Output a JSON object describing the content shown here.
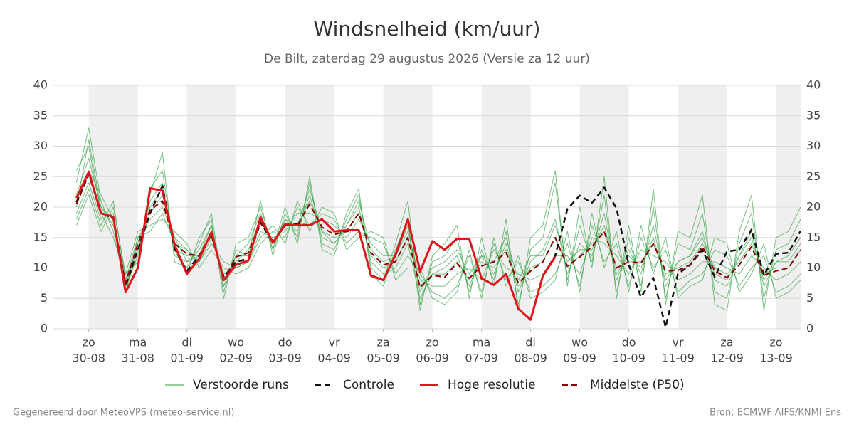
{
  "chart_data": {
    "type": "line",
    "title": "Windsnelheid (km/uur)",
    "subtitle": "De Bilt, zaterdag 29 augustus 2026 (Versie za 12 uur)",
    "footer_left": "Gegenereerd door MeteoVPS (meteo-service.nl)",
    "footer_right": "Bron: ECMWF AIFS/KNMI Ens",
    "xlim": [
      -0.72,
      14.5
    ],
    "ylim": [
      0,
      40
    ],
    "yticks": [
      0,
      5,
      10,
      15,
      20,
      25,
      30,
      35,
      40
    ],
    "grid": true,
    "xticks": [
      {
        "value": 0,
        "label": [
          "zo",
          "30-08"
        ]
      },
      {
        "value": 1,
        "label": [
          "ma",
          "31-08"
        ]
      },
      {
        "value": 2,
        "label": [
          "di",
          "01-09"
        ]
      },
      {
        "value": 3,
        "label": [
          "wo",
          "02-09"
        ]
      },
      {
        "value": 4,
        "label": [
          "do",
          "03-09"
        ]
      },
      {
        "value": 5,
        "label": [
          "vr",
          "04-09"
        ]
      },
      {
        "value": 6,
        "label": [
          "za",
          "05-09"
        ]
      },
      {
        "value": 7,
        "label": [
          "zo",
          "06-09"
        ]
      },
      {
        "value": 8,
        "label": [
          "ma",
          "07-09"
        ]
      },
      {
        "value": 9,
        "label": [
          "di",
          "08-09"
        ]
      },
      {
        "value": 10,
        "label": [
          "wo",
          "09-09"
        ]
      },
      {
        "value": 11,
        "label": [
          "do",
          "10-09"
        ]
      },
      {
        "value": 12,
        "label": [
          "vr",
          "11-09"
        ]
      },
      {
        "value": 13,
        "label": [
          "za",
          "12-09"
        ]
      },
      {
        "value": 14,
        "label": [
          "zo",
          "13-09"
        ]
      }
    ],
    "x": [
      -0.25,
      0,
      0.25,
      0.5,
      0.75,
      1,
      1.25,
      1.5,
      1.75,
      2,
      2.25,
      2.5,
      2.75,
      3,
      3.25,
      3.5,
      3.75,
      4,
      4.25,
      4.5,
      4.75,
      5,
      5.25,
      5.5,
      5.75,
      6,
      6.25,
      6.5,
      6.75,
      7,
      7.25,
      7.5,
      7.75,
      8,
      8.25,
      8.5,
      8.75,
      9,
      9.25,
      9.5,
      9.75,
      10,
      10.25,
      10.5,
      10.75,
      11,
      11.25,
      11.5,
      11.75,
      12,
      12.25,
      12.5,
      12.75,
      13,
      13.25,
      13.5,
      13.75,
      14,
      14.25,
      14.5
    ],
    "ensemble": {
      "name": "Verstoorde runs",
      "color": "#2e9e3e",
      "members": [
        [
          22,
          28,
          20,
          17,
          8,
          13,
          21,
          24,
          12,
          11,
          13,
          17,
          7,
          12,
          14,
          19,
          13,
          18,
          16,
          22,
          15,
          14,
          17,
          20,
          11,
          9,
          10,
          14,
          5,
          9,
          10,
          12,
          7,
          12,
          9,
          14,
          6,
          11,
          13,
          18,
          9,
          14,
          12,
          19,
          8,
          13,
          9,
          17,
          7,
          11,
          12,
          16,
          8,
          7,
          12,
          16,
          7,
          11,
          12,
          15
        ],
        [
          19,
          24,
          18,
          19,
          6,
          15,
          18,
          20,
          15,
          13,
          11,
          15,
          9,
          10,
          11,
          16,
          15,
          16,
          19,
          19,
          18,
          17,
          15,
          18,
          14,
          12,
          12,
          16,
          8,
          7,
          7,
          9,
          10,
          8,
          13,
          10,
          9,
          8,
          9,
          12,
          12,
          9,
          15,
          14,
          12,
          9,
          13,
          12,
          11,
          8,
          9,
          11,
          11,
          10,
          9,
          12,
          10,
          8,
          9,
          11
        ],
        [
          24,
          33,
          21,
          16,
          7,
          12,
          22,
          29,
          11,
          10,
          14,
          19,
          6,
          13,
          12,
          21,
          12,
          19,
          15,
          24,
          14,
          13,
          18,
          22,
          10,
          8,
          14,
          21,
          4,
          11,
          12,
          15,
          6,
          13,
          8,
          16,
          4,
          13,
          15,
          24,
          8,
          17,
          11,
          22,
          6,
          15,
          7,
          20,
          5,
          14,
          13,
          19,
          6,
          5,
          14,
          19,
          5,
          13,
          14,
          18
        ],
        [
          17,
          22,
          16,
          20,
          9,
          16,
          17,
          18,
          16,
          14,
          10,
          13,
          10,
          9,
          10,
          14,
          16,
          15,
          20,
          17,
          19,
          18,
          14,
          16,
          15,
          14,
          9,
          12,
          9,
          6,
          5,
          7,
          12,
          6,
          14,
          8,
          11,
          6,
          7,
          9,
          14,
          7,
          17,
          11,
          14,
          7,
          15,
          10,
          13,
          6,
          8,
          9,
          13,
          12,
          7,
          10,
          12,
          6,
          7,
          9
        ],
        [
          21,
          26,
          22,
          18,
          7,
          14,
          20,
          23,
          13,
          12,
          12,
          16,
          8,
          11,
          13,
          18,
          14,
          17,
          17,
          21,
          16,
          15,
          16,
          19,
          12,
          10,
          11,
          15,
          7,
          9,
          9,
          11,
          8,
          11,
          10,
          13,
          7,
          10,
          11,
          15,
          10,
          12,
          14,
          16,
          10,
          11,
          11,
          14,
          9,
          10,
          11,
          14,
          10,
          9,
          11,
          14,
          9,
          10,
          10,
          13
        ],
        [
          26,
          30,
          19,
          15,
          9,
          11,
          23,
          26,
          13,
          9,
          15,
          18,
          5,
          14,
          15,
          20,
          13,
          20,
          14,
          25,
          13,
          12,
          19,
          23,
          9,
          7,
          13,
          18,
          3,
          12,
          14,
          17,
          5,
          15,
          7,
          18,
          3,
          15,
          17,
          26,
          7,
          20,
          10,
          25,
          5,
          17,
          6,
          23,
          4,
          16,
          15,
          22,
          4,
          3,
          16,
          22,
          3,
          15,
          16,
          20
        ],
        [
          18,
          23,
          17,
          21,
          8,
          15,
          16,
          19,
          14,
          13,
          11,
          14,
          11,
          10,
          11,
          15,
          17,
          14,
          21,
          16,
          20,
          19,
          13,
          15,
          16,
          15,
          8,
          10,
          10,
          5,
          4,
          6,
          13,
          5,
          15,
          7,
          12,
          5,
          6,
          8,
          16,
          6,
          19,
          10,
          16,
          6,
          17,
          9,
          15,
          5,
          7,
          8,
          15,
          14,
          6,
          9,
          14,
          5,
          6,
          8
        ],
        [
          20,
          31,
          20,
          18,
          6,
          13,
          19,
          22,
          15,
          11,
          12,
          17,
          7,
          12,
          12,
          18,
          14,
          18,
          17,
          23,
          16,
          14,
          17,
          21,
          13,
          11,
          12,
          17,
          6,
          10,
          11,
          13,
          9,
          12,
          11,
          15,
          8,
          12,
          12,
          17,
          11,
          13,
          13,
          17,
          9,
          12,
          10,
          15,
          8,
          11,
          12,
          15,
          9,
          8,
          12,
          15,
          8,
          11,
          11,
          14
        ]
      ]
    },
    "series": [
      {
        "name": "Controle",
        "color": "#111111",
        "dash": true,
        "values": [
          20.8,
          25.5,
          19,
          18.3,
          7,
          13,
          19,
          23.5,
          13.2,
          9.5,
          12,
          15.5,
          8.5,
          11,
          11.5,
          17.5,
          14.2,
          17,
          17.2,
          17,
          18,
          16,
          16,
          16.3,
          8.8,
          8,
          12,
          18,
          9.5,
          14.4,
          13,
          14.8,
          14.8,
          8.3,
          7.2,
          9,
          3.3,
          1.5,
          8.7,
          12,
          19.7,
          21.9,
          20.7,
          23.2,
          19.8,
          10.5,
          5.2,
          8.4,
          0.3,
          9,
          10.5,
          13,
          8.5,
          12.7,
          13,
          16.3,
          8.8,
          12.3,
          12.5,
          16.1
        ]
      },
      {
        "name": "Hoge resolutie",
        "color": "#e0151b",
        "dash": false,
        "values": [
          21.5,
          25.8,
          19,
          18.4,
          6,
          10,
          23.1,
          22.7,
          13.8,
          9,
          11.5,
          15.9,
          8,
          10.5,
          11.2,
          18.3,
          14.1,
          17.2,
          17,
          17,
          18,
          16,
          16.2,
          16.2,
          8.7,
          8,
          12.2,
          18,
          9.4,
          14.4,
          13,
          14.8,
          14.8,
          8.3,
          7.2,
          9,
          3.3,
          1.5,
          8.7,
          11.8,
          null,
          null,
          null,
          null,
          null,
          null,
          null,
          null,
          null,
          null,
          null,
          null,
          null,
          null,
          null,
          null,
          null,
          null,
          null,
          null
        ]
      },
      {
        "name": "Middelste (P50)",
        "color": "#8b0000",
        "dash": true,
        "values": [
          20.5,
          25.3,
          19.2,
          18,
          7.5,
          14,
          19.5,
          21,
          14,
          12.3,
          12,
          15.8,
          8,
          11.8,
          12.5,
          17.5,
          14.4,
          16.9,
          17,
          20.5,
          16.7,
          15.5,
          16,
          19,
          12.5,
          10.5,
          11,
          15,
          6.8,
          8.8,
          8.5,
          10.8,
          8.3,
          10.3,
          11,
          12.5,
          7.5,
          9.5,
          11,
          15,
          10.3,
          11.8,
          13.5,
          16,
          10,
          11,
          10.8,
          14,
          9.5,
          9.6,
          10.5,
          13.5,
          9.5,
          8.4,
          10.5,
          13.5,
          8.8,
          9.5,
          10,
          13
        ]
      }
    ]
  }
}
